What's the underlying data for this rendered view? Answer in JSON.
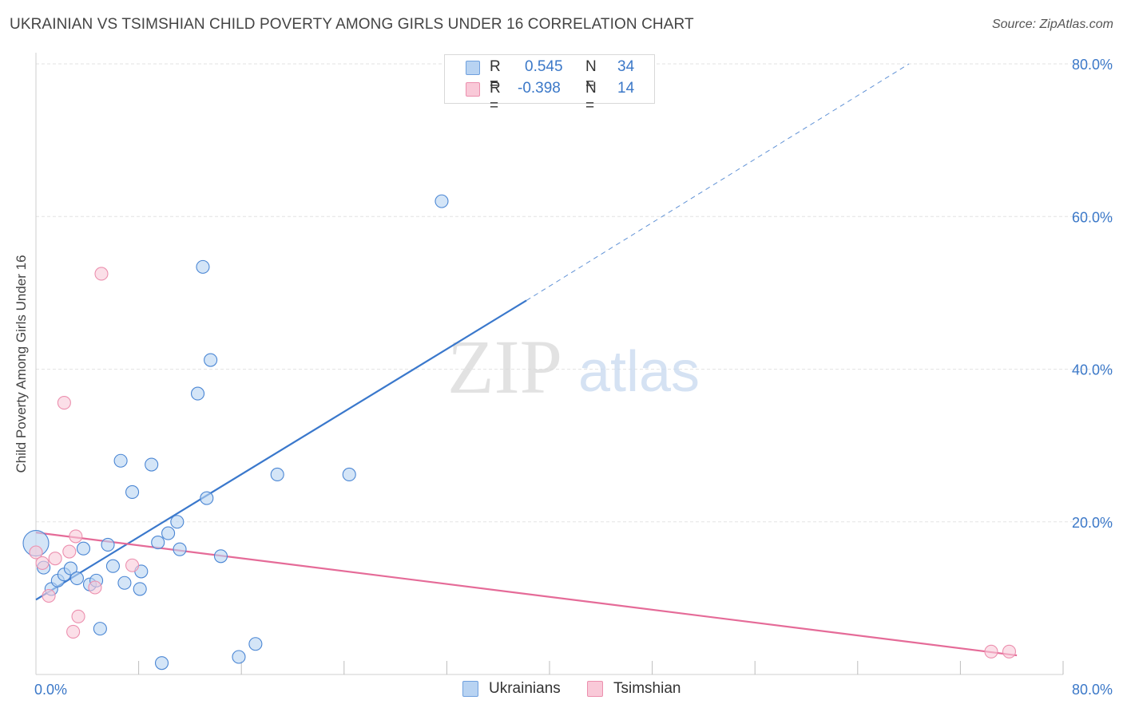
{
  "title": "UKRAINIAN VS TSIMSHIAN CHILD POVERTY AMONG GIRLS UNDER 16 CORRELATION CHART",
  "source": "Source: ZipAtlas.com",
  "watermark": {
    "zip": "ZIP",
    "atlas": "atlas"
  },
  "stats": [
    {
      "r_label": "R =",
      "r_value": "0.545",
      "n_label": "N =",
      "n_value": "34",
      "color": "#6fa0de"
    },
    {
      "r_label": "R =",
      "r_value": "-0.398",
      "n_label": "N =",
      "n_value": "14",
      "color": "#ec8fae"
    }
  ],
  "legend": [
    "Ukrainians",
    "Tsimshian"
  ],
  "chart_data": {
    "type": "scatter",
    "title": "UKRAINIAN VS TSIMSHIAN CHILD POVERTY AMONG GIRLS UNDER 16 CORRELATION CHART",
    "xlabel": "",
    "ylabel": "Child Poverty Among Girls Under 16",
    "xlim": [
      0,
      80
    ],
    "ylim": [
      0,
      80
    ],
    "x_tick_labels": [
      "0.0%",
      "80.0%"
    ],
    "y_tick_labels": [
      "20.0%",
      "40.0%",
      "60.0%",
      "80.0%"
    ],
    "y_ticks": [
      20,
      40,
      60,
      80
    ],
    "grid": true,
    "legend_position": "bottom",
    "series": [
      {
        "name": "Ukrainians",
        "color": "#4a86d4",
        "fill": "#b8d3f2",
        "points": [
          [
            0.0,
            17.2
          ],
          [
            0.6,
            14.0
          ],
          [
            1.2,
            11.2
          ],
          [
            1.7,
            12.3
          ],
          [
            2.2,
            13.1
          ],
          [
            2.7,
            13.9
          ],
          [
            3.2,
            12.6
          ],
          [
            3.7,
            16.5
          ],
          [
            4.2,
            11.8
          ],
          [
            4.7,
            12.3
          ],
          [
            5.0,
            6.0
          ],
          [
            5.6,
            17.0
          ],
          [
            6.0,
            14.2
          ],
          [
            6.6,
            28.0
          ],
          [
            6.9,
            12.0
          ],
          [
            7.5,
            23.9
          ],
          [
            8.1,
            11.2
          ],
          [
            8.2,
            13.5
          ],
          [
            9.0,
            27.5
          ],
          [
            9.5,
            17.3
          ],
          [
            9.8,
            1.5
          ],
          [
            10.3,
            18.5
          ],
          [
            11.0,
            20.0
          ],
          [
            11.2,
            16.4
          ],
          [
            12.6,
            36.8
          ],
          [
            13.0,
            53.4
          ],
          [
            13.3,
            23.1
          ],
          [
            13.6,
            41.2
          ],
          [
            14.4,
            15.5
          ],
          [
            15.8,
            2.3
          ],
          [
            17.1,
            4.0
          ],
          [
            18.8,
            26.2
          ],
          [
            24.4,
            26.2
          ],
          [
            31.6,
            62.0
          ]
        ]
      },
      {
        "name": "Tsimshian",
        "color": "#ec8fae",
        "fill": "#f9c9d8",
        "points": [
          [
            0.0,
            16.0
          ],
          [
            0.5,
            14.6
          ],
          [
            1.0,
            10.3
          ],
          [
            1.5,
            15.2
          ],
          [
            2.2,
            35.6
          ],
          [
            2.6,
            16.1
          ],
          [
            3.1,
            18.1
          ],
          [
            3.3,
            7.6
          ],
          [
            2.9,
            5.6
          ],
          [
            4.6,
            11.4
          ],
          [
            5.1,
            52.5
          ],
          [
            7.5,
            14.3
          ],
          [
            74.4,
            3.0
          ],
          [
            75.8,
            3.0
          ]
        ]
      }
    ],
    "trendlines": [
      {
        "series": "Ukrainians",
        "x1": 0,
        "y1": 9.8,
        "x2": 38.2,
        "y2": 49.0,
        "dashed_to_x": 68.0,
        "dashed_to_y": 80.0,
        "color": "#3a78cc"
      },
      {
        "series": "Tsimshian",
        "x1": 0,
        "y1": 18.6,
        "x2": 76.4,
        "y2": 2.5,
        "color": "#e56b98"
      }
    ]
  }
}
